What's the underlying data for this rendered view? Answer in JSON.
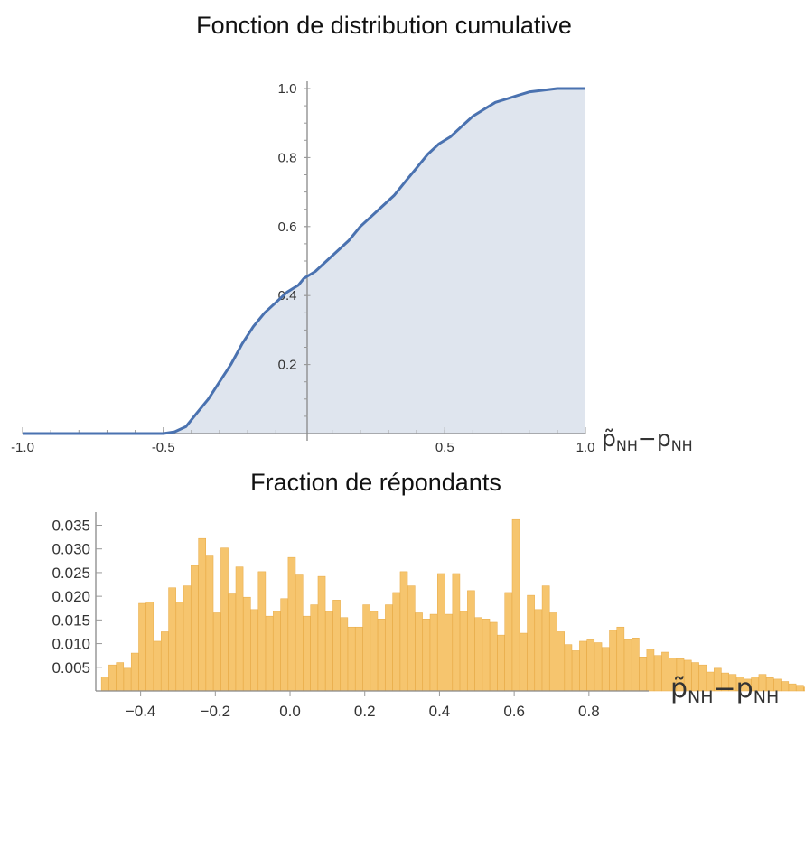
{
  "chart_data": [
    {
      "type": "area",
      "title": "Fonction de distribution cumulative",
      "xlabel_main": "p̃",
      "xlabel_sub": "NH",
      "xlabel_minus": "−p",
      "xlabel_sub2": "NH",
      "xlim": [
        -1.0,
        1.0
      ],
      "ylim": [
        0,
        1.0
      ],
      "x_ticks": [
        {
          "value": -1.0,
          "label": "-1.0"
        },
        {
          "value": -0.5,
          "label": "-0.5"
        },
        {
          "value": 0.5,
          "label": "0.5"
        },
        {
          "value": 1.0,
          "label": "1.0"
        }
      ],
      "y_ticks": [
        {
          "value": 0.2,
          "label": "0.2"
        },
        {
          "value": 0.4,
          "label": "0.4"
        },
        {
          "value": 0.6,
          "label": "0.6"
        },
        {
          "value": 0.8,
          "label": "0.8"
        },
        {
          "value": 1.0,
          "label": "1.0"
        }
      ],
      "line_color": "#4a72b0",
      "fill_color": "#dfe5ee",
      "points": [
        [
          -1.0,
          0.0
        ],
        [
          -0.5,
          0.0
        ],
        [
          -0.46,
          0.005
        ],
        [
          -0.42,
          0.02
        ],
        [
          -0.38,
          0.06
        ],
        [
          -0.34,
          0.1
        ],
        [
          -0.3,
          0.15
        ],
        [
          -0.26,
          0.2
        ],
        [
          -0.22,
          0.26
        ],
        [
          -0.18,
          0.31
        ],
        [
          -0.14,
          0.35
        ],
        [
          -0.1,
          0.38
        ],
        [
          -0.06,
          0.41
        ],
        [
          -0.02,
          0.43
        ],
        [
          0.0,
          0.45
        ],
        [
          0.04,
          0.47
        ],
        [
          0.08,
          0.5
        ],
        [
          0.12,
          0.53
        ],
        [
          0.16,
          0.56
        ],
        [
          0.2,
          0.6
        ],
        [
          0.24,
          0.63
        ],
        [
          0.28,
          0.66
        ],
        [
          0.32,
          0.69
        ],
        [
          0.36,
          0.73
        ],
        [
          0.4,
          0.77
        ],
        [
          0.44,
          0.81
        ],
        [
          0.48,
          0.84
        ],
        [
          0.52,
          0.86
        ],
        [
          0.56,
          0.89
        ],
        [
          0.6,
          0.92
        ],
        [
          0.64,
          0.94
        ],
        [
          0.68,
          0.96
        ],
        [
          0.72,
          0.97
        ],
        [
          0.76,
          0.98
        ],
        [
          0.8,
          0.99
        ],
        [
          0.85,
          0.995
        ],
        [
          0.9,
          1.0
        ],
        [
          1.0,
          1.0
        ]
      ]
    },
    {
      "type": "bar",
      "title": "Fraction de répondants",
      "xlabel_main": "p̃",
      "xlabel_sub": "NH",
      "xlabel_minus": "−p",
      "xlabel_sub2": "NH",
      "xlim": [
        -0.52,
        0.96
      ],
      "ylim": [
        0,
        0.037
      ],
      "x_ticks": [
        {
          "value": -0.4,
          "label": "−0.4"
        },
        {
          "value": -0.2,
          "label": "−0.2"
        },
        {
          "value": 0.0,
          "label": "0.0"
        },
        {
          "value": 0.2,
          "label": "0.2"
        },
        {
          "value": 0.4,
          "label": "0.4"
        },
        {
          "value": 0.6,
          "label": "0.6"
        },
        {
          "value": 0.8,
          "label": "0.8"
        }
      ],
      "y_ticks": [
        {
          "value": 0.005,
          "label": "0.005"
        },
        {
          "value": 0.01,
          "label": "0.010"
        },
        {
          "value": 0.015,
          "label": "0.015"
        },
        {
          "value": 0.02,
          "label": "0.020"
        },
        {
          "value": 0.025,
          "label": "0.025"
        },
        {
          "value": 0.03,
          "label": "0.030"
        },
        {
          "value": 0.035,
          "label": "0.035"
        }
      ],
      "bar_color": "#f6c56e",
      "bar_edge": "#e7a842",
      "bin_start": -0.5,
      "bin_width": 0.02,
      "values": [
        0.003,
        0.0055,
        0.006,
        0.0048,
        0.008,
        0.0185,
        0.0188,
        0.0105,
        0.0125,
        0.0218,
        0.0188,
        0.0222,
        0.0265,
        0.0322,
        0.0285,
        0.0165,
        0.0302,
        0.0205,
        0.0262,
        0.0198,
        0.0172,
        0.0252,
        0.0158,
        0.0168,
        0.0195,
        0.0282,
        0.0245,
        0.0158,
        0.0182,
        0.0242,
        0.0168,
        0.0192,
        0.0155,
        0.0135,
        0.0135,
        0.0182,
        0.0168,
        0.0152,
        0.0182,
        0.0208,
        0.0252,
        0.0222,
        0.0165,
        0.0152,
        0.0162,
        0.0248,
        0.0162,
        0.0248,
        0.0168,
        0.0212,
        0.0155,
        0.0152,
        0.0145,
        0.0118,
        0.0208,
        0.0362,
        0.0122,
        0.0202,
        0.0172,
        0.0222,
        0.0165,
        0.0125,
        0.0098,
        0.0085,
        0.0105,
        0.0108,
        0.0102,
        0.0092,
        0.0128,
        0.0135,
        0.0108,
        0.0112,
        0.0072,
        0.0088,
        0.0075,
        0.0082,
        0.007,
        0.0068,
        0.0065,
        0.006,
        0.0055,
        0.004,
        0.0048,
        0.0038,
        0.0035,
        0.003,
        0.0025,
        0.003,
        0.0035,
        0.0028,
        0.0025,
        0.002,
        0.0015,
        0.0012,
        0.0008
      ]
    }
  ]
}
